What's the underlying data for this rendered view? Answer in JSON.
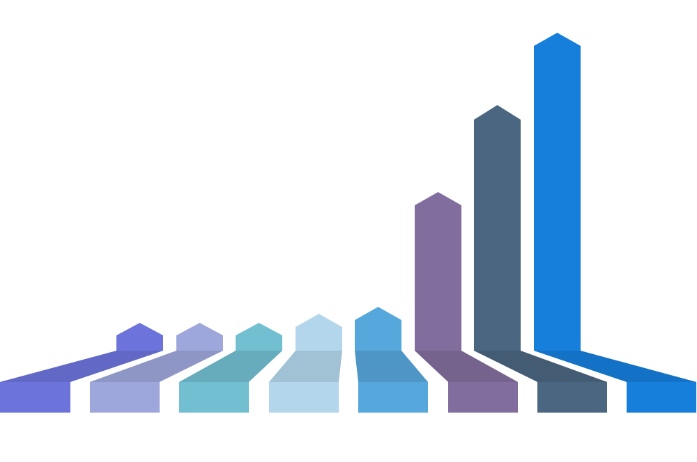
{
  "graphic": {
    "kind": "rising arrows infographic",
    "arrows": [
      {
        "name": "arrow-1",
        "color": "#6c74dc"
      },
      {
        "name": "arrow-2",
        "color": "#9ea7dc"
      },
      {
        "name": "arrow-3",
        "color": "#72bfd1"
      },
      {
        "name": "arrow-4",
        "color": "#b3d6ec"
      },
      {
        "name": "arrow-5",
        "color": "#55a7dc"
      },
      {
        "name": "arrow-6",
        "color": "#826e9e"
      },
      {
        "name": "arrow-7",
        "color": "#4a6680"
      },
      {
        "name": "arrow-8",
        "color": "#167fdc"
      }
    ]
  }
}
